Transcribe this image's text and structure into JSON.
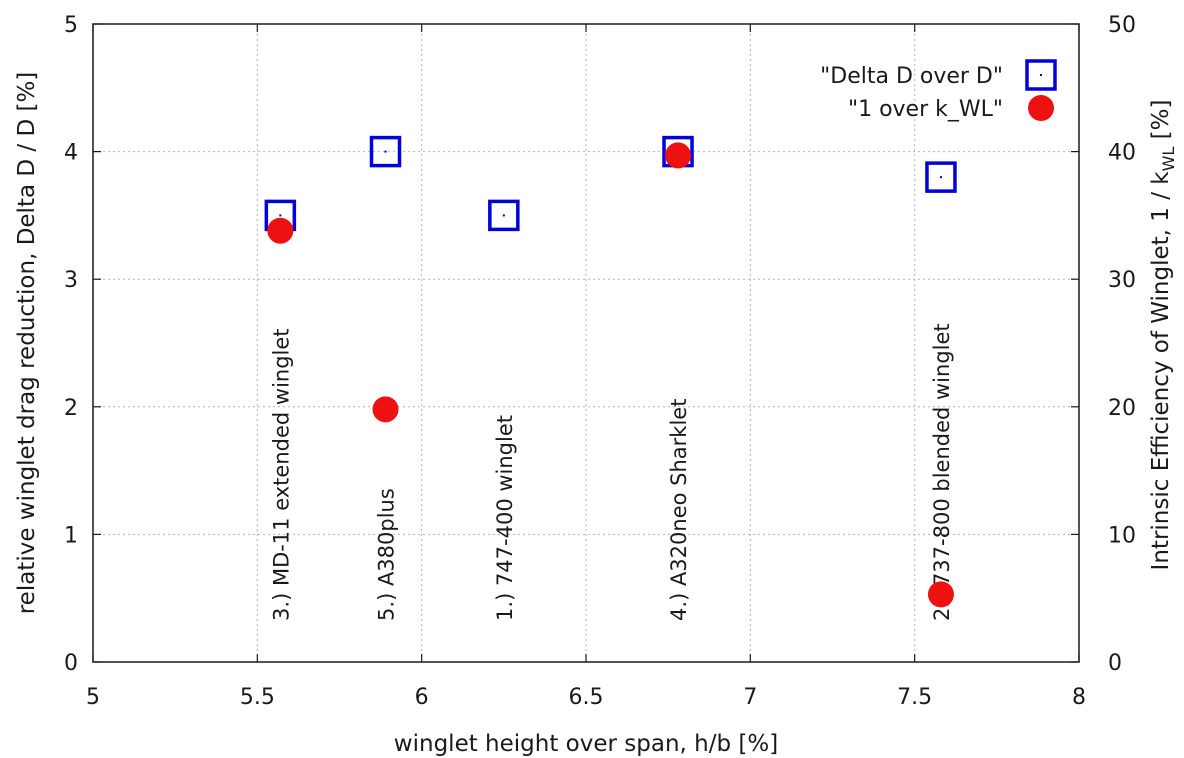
{
  "chart_data": {
    "type": "scatter",
    "xlabel": "winglet height over span, h/b [%]",
    "ylabel_left": "relative winglet drag reduction, Delta D / D [%]",
    "ylabel_right_main": "Intrinsic Efficiency of Winglet, 1 / k",
    "ylabel_right_sub": "WL",
    "ylabel_right_unit": " [%]",
    "xlim": [
      5,
      8
    ],
    "ylim_left": [
      0,
      5
    ],
    "ylim_right": [
      0,
      50
    ],
    "x_ticks": [
      {
        "value": 5,
        "label": "5"
      },
      {
        "value": 5.5,
        "label": "5.5"
      },
      {
        "value": 6,
        "label": "6"
      },
      {
        "value": 6.5,
        "label": "6.5"
      },
      {
        "value": 7,
        "label": "7"
      },
      {
        "value": 7.5,
        "label": "7.5"
      },
      {
        "value": 8,
        "label": "8"
      }
    ],
    "y_left_ticks": [
      {
        "value": 0,
        "label": "0"
      },
      {
        "value": 1,
        "label": "1"
      },
      {
        "value": 2,
        "label": "2"
      },
      {
        "value": 3,
        "label": "3"
      },
      {
        "value": 4,
        "label": "4"
      },
      {
        "value": 5,
        "label": "5"
      }
    ],
    "y_right_ticks": [
      {
        "value": 0,
        "label": "0"
      },
      {
        "value": 10,
        "label": "10"
      },
      {
        "value": 20,
        "label": "20"
      },
      {
        "value": 30,
        "label": "30"
      },
      {
        "value": 40,
        "label": "40"
      },
      {
        "value": 50,
        "label": "50"
      }
    ],
    "grid": true,
    "legend_position": "top-right",
    "series": [
      {
        "name": "\"Delta D over D\"",
        "axis": "left",
        "marker": "open-square",
        "color": "#0000dd",
        "points": [
          {
            "x": 5.57,
            "y": 3.5
          },
          {
            "x": 5.89,
            "y": 4.0
          },
          {
            "x": 6.25,
            "y": 3.5
          },
          {
            "x": 6.78,
            "y": 4.0
          },
          {
            "x": 7.58,
            "y": 3.8
          }
        ]
      },
      {
        "name": "\"1 over k_WL\"",
        "axis": "right",
        "marker": "filled-circle",
        "color": "#ee1111",
        "points": [
          {
            "x": 5.57,
            "y": 33.8
          },
          {
            "x": 5.89,
            "y": 19.8
          },
          {
            "x": 6.78,
            "y": 39.7
          },
          {
            "x": 7.58,
            "y": 5.3
          }
        ]
      }
    ],
    "annotations": [
      {
        "text": "3.) MD-11 extended winglet",
        "x": 5.57,
        "y": 0.4
      },
      {
        "text": "5.)  A380plus",
        "x": 5.89,
        "y": 0.4
      },
      {
        "text": "1.) 747-400 winglet",
        "x": 6.25,
        "y": 0.4
      },
      {
        "text": "4.) A320neo Sharklet",
        "x": 6.78,
        "y": 0.4
      },
      {
        "text": "2.) 737-800 blended winglet",
        "x": 7.58,
        "y": 0.4
      }
    ]
  }
}
